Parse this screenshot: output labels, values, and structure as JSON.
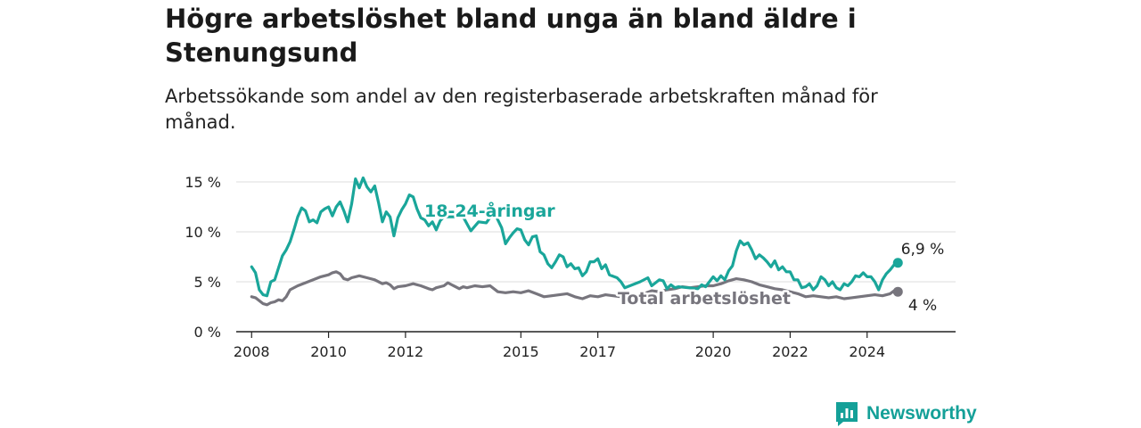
{
  "header": {
    "title": "Högre arbetslöshet bland unga än bland äldre i Stenungsund",
    "subtitle": "Arbetssökande som andel av den registerbaserade arbetskraften månad för månad."
  },
  "brand": {
    "name": "Newsworthy",
    "icon": "newsworthy-bar-chart-icon"
  },
  "colors": {
    "youth": "#1aa69a",
    "total": "#77757d",
    "grid": "#dddddd",
    "axis": "#222222"
  },
  "chart_data": {
    "type": "line",
    "title": "Högre arbetslöshet bland unga än bland äldre i Stenungsund",
    "xlabel": "",
    "ylabel": "",
    "xlim": [
      2007.6,
      2026.3
    ],
    "ylim": [
      0,
      15
    ],
    "grid": true,
    "yticks": [
      {
        "value": 0,
        "label": "0 %"
      },
      {
        "value": 5,
        "label": "5 %"
      },
      {
        "value": 10,
        "label": "10 %"
      },
      {
        "value": 15,
        "label": "15 %"
      }
    ],
    "xticks": [
      {
        "value": 2008,
        "label": "2008"
      },
      {
        "value": 2010,
        "label": "2010"
      },
      {
        "value": 2012,
        "label": "2012"
      },
      {
        "value": 2015,
        "label": "2015"
      },
      {
        "value": 2017,
        "label": "2017"
      },
      {
        "value": 2020,
        "label": "2020"
      },
      {
        "value": 2022,
        "label": "2022"
      },
      {
        "value": 2024,
        "label": "2024"
      }
    ],
    "series": [
      {
        "name": "18-24-åringar",
        "end_label": "6,9 %",
        "points": [
          [
            2008.0,
            6.5
          ],
          [
            2008.1,
            5.9
          ],
          [
            2008.2,
            4.2
          ],
          [
            2008.3,
            3.7
          ],
          [
            2008.4,
            3.6
          ],
          [
            2008.5,
            5.0
          ],
          [
            2008.6,
            5.2
          ],
          [
            2008.7,
            6.4
          ],
          [
            2008.8,
            7.6
          ],
          [
            2008.9,
            8.2
          ],
          [
            2009.0,
            9.0
          ],
          [
            2009.1,
            10.2
          ],
          [
            2009.2,
            11.5
          ],
          [
            2009.3,
            12.4
          ],
          [
            2009.4,
            12.1
          ],
          [
            2009.5,
            11.0
          ],
          [
            2009.6,
            11.2
          ],
          [
            2009.7,
            10.9
          ],
          [
            2009.8,
            12.0
          ],
          [
            2009.9,
            12.3
          ],
          [
            2010.0,
            12.5
          ],
          [
            2010.1,
            11.6
          ],
          [
            2010.2,
            12.5
          ],
          [
            2010.3,
            13.0
          ],
          [
            2010.4,
            12.1
          ],
          [
            2010.5,
            11.0
          ],
          [
            2010.6,
            12.8
          ],
          [
            2010.7,
            15.3
          ],
          [
            2010.8,
            14.4
          ],
          [
            2010.9,
            15.4
          ],
          [
            2011.0,
            14.5
          ],
          [
            2011.1,
            14.0
          ],
          [
            2011.2,
            14.6
          ],
          [
            2011.3,
            12.9
          ],
          [
            2011.4,
            11.0
          ],
          [
            2011.5,
            12.0
          ],
          [
            2011.6,
            11.5
          ],
          [
            2011.7,
            9.6
          ],
          [
            2011.8,
            11.4
          ],
          [
            2011.9,
            12.2
          ],
          [
            2012.0,
            12.8
          ],
          [
            2012.1,
            13.7
          ],
          [
            2012.2,
            13.5
          ],
          [
            2012.3,
            12.3
          ],
          [
            2012.4,
            11.4
          ],
          [
            2012.5,
            11.2
          ],
          [
            2012.6,
            10.6
          ],
          [
            2012.7,
            11.0
          ],
          [
            2012.8,
            10.2
          ],
          [
            2012.9,
            11.1
          ],
          [
            2013.0,
            11.5
          ],
          [
            2013.5,
            11.5
          ],
          [
            2013.7,
            10.1
          ],
          [
            2013.9,
            11.0
          ],
          [
            2014.1,
            10.9
          ],
          [
            2014.3,
            12.0
          ],
          [
            2014.5,
            10.4
          ],
          [
            2014.6,
            8.8
          ],
          [
            2014.7,
            9.4
          ],
          [
            2014.8,
            9.9
          ],
          [
            2014.9,
            10.3
          ],
          [
            2015.0,
            10.2
          ],
          [
            2015.1,
            9.2
          ],
          [
            2015.2,
            8.7
          ],
          [
            2015.3,
            9.5
          ],
          [
            2015.4,
            9.6
          ],
          [
            2015.5,
            8.0
          ],
          [
            2015.6,
            7.7
          ],
          [
            2015.7,
            6.8
          ],
          [
            2015.8,
            6.4
          ],
          [
            2015.9,
            7.0
          ],
          [
            2016.0,
            7.7
          ],
          [
            2016.1,
            7.5
          ],
          [
            2016.2,
            6.5
          ],
          [
            2016.3,
            6.8
          ],
          [
            2016.4,
            6.3
          ],
          [
            2016.5,
            6.4
          ],
          [
            2016.6,
            5.6
          ],
          [
            2016.7,
            6.0
          ],
          [
            2016.8,
            7.0
          ],
          [
            2016.9,
            7.0
          ],
          [
            2017.0,
            7.3
          ],
          [
            2017.1,
            6.3
          ],
          [
            2017.2,
            6.7
          ],
          [
            2017.3,
            5.7
          ],
          [
            2017.5,
            5.4
          ],
          [
            2017.6,
            5.0
          ],
          [
            2017.7,
            4.4
          ],
          [
            2017.9,
            4.7
          ],
          [
            2018.1,
            5.0
          ],
          [
            2018.3,
            5.4
          ],
          [
            2018.4,
            4.6
          ],
          [
            2018.6,
            5.2
          ],
          [
            2018.7,
            5.1
          ],
          [
            2018.8,
            4.3
          ],
          [
            2018.9,
            4.7
          ],
          [
            2019.0,
            4.4
          ],
          [
            2019.1,
            4.5
          ],
          [
            2019.6,
            4.3
          ],
          [
            2019.7,
            4.7
          ],
          [
            2019.8,
            4.5
          ],
          [
            2019.9,
            5.0
          ],
          [
            2020.0,
            5.5
          ],
          [
            2020.1,
            5.1
          ],
          [
            2020.2,
            5.6
          ],
          [
            2020.3,
            5.2
          ],
          [
            2020.4,
            6.1
          ],
          [
            2020.5,
            6.6
          ],
          [
            2020.6,
            8.1
          ],
          [
            2020.7,
            9.1
          ],
          [
            2020.8,
            8.7
          ],
          [
            2020.9,
            8.9
          ],
          [
            2021.0,
            8.2
          ],
          [
            2021.1,
            7.3
          ],
          [
            2021.2,
            7.7
          ],
          [
            2021.3,
            7.4
          ],
          [
            2021.4,
            7.0
          ],
          [
            2021.5,
            6.5
          ],
          [
            2021.6,
            7.1
          ],
          [
            2021.7,
            6.2
          ],
          [
            2021.8,
            6.5
          ],
          [
            2021.9,
            6.0
          ],
          [
            2022.0,
            6.0
          ],
          [
            2022.1,
            5.2
          ],
          [
            2022.2,
            5.2
          ],
          [
            2022.3,
            4.4
          ],
          [
            2022.4,
            4.5
          ],
          [
            2022.5,
            4.8
          ],
          [
            2022.6,
            4.2
          ],
          [
            2022.7,
            4.6
          ],
          [
            2022.8,
            5.5
          ],
          [
            2022.9,
            5.2
          ],
          [
            2023.0,
            4.6
          ],
          [
            2023.1,
            5.0
          ],
          [
            2023.2,
            4.4
          ],
          [
            2023.3,
            4.2
          ],
          [
            2023.4,
            4.8
          ],
          [
            2023.5,
            4.6
          ],
          [
            2023.6,
            5.0
          ],
          [
            2023.7,
            5.6
          ],
          [
            2023.8,
            5.5
          ],
          [
            2023.9,
            5.9
          ],
          [
            2024.0,
            5.5
          ],
          [
            2024.1,
            5.5
          ],
          [
            2024.2,
            5.0
          ],
          [
            2024.3,
            4.2
          ],
          [
            2024.4,
            5.2
          ],
          [
            2024.5,
            5.8
          ],
          [
            2024.6,
            6.2
          ],
          [
            2024.7,
            6.7
          ],
          [
            2024.8,
            6.9
          ]
        ]
      },
      {
        "name": "Total arbetslöshet",
        "end_label": "4 %",
        "points": [
          [
            2008.0,
            3.5
          ],
          [
            2008.1,
            3.4
          ],
          [
            2008.2,
            3.1
          ],
          [
            2008.3,
            2.8
          ],
          [
            2008.4,
            2.7
          ],
          [
            2008.5,
            2.9
          ],
          [
            2008.6,
            3.0
          ],
          [
            2008.7,
            3.2
          ],
          [
            2008.8,
            3.1
          ],
          [
            2008.9,
            3.5
          ],
          [
            2009.0,
            4.2
          ],
          [
            2009.2,
            4.6
          ],
          [
            2009.4,
            4.9
          ],
          [
            2009.6,
            5.2
          ],
          [
            2009.8,
            5.5
          ],
          [
            2010.0,
            5.7
          ],
          [
            2010.1,
            5.9
          ],
          [
            2010.2,
            6.0
          ],
          [
            2010.3,
            5.8
          ],
          [
            2010.4,
            5.3
          ],
          [
            2010.5,
            5.2
          ],
          [
            2010.6,
            5.4
          ],
          [
            2010.8,
            5.6
          ],
          [
            2011.0,
            5.4
          ],
          [
            2011.2,
            5.2
          ],
          [
            2011.4,
            4.8
          ],
          [
            2011.5,
            4.9
          ],
          [
            2011.6,
            4.7
          ],
          [
            2011.7,
            4.3
          ],
          [
            2011.8,
            4.5
          ],
          [
            2012.0,
            4.6
          ],
          [
            2012.2,
            4.8
          ],
          [
            2012.4,
            4.6
          ],
          [
            2012.6,
            4.3
          ],
          [
            2012.7,
            4.2
          ],
          [
            2012.8,
            4.4
          ],
          [
            2013.0,
            4.6
          ],
          [
            2013.1,
            4.9
          ],
          [
            2013.2,
            4.7
          ],
          [
            2013.3,
            4.5
          ],
          [
            2013.4,
            4.3
          ],
          [
            2013.5,
            4.5
          ],
          [
            2013.6,
            4.4
          ],
          [
            2013.8,
            4.6
          ],
          [
            2014.0,
            4.5
          ],
          [
            2014.2,
            4.6
          ],
          [
            2014.4,
            4.0
          ],
          [
            2014.6,
            3.9
          ],
          [
            2014.8,
            4.0
          ],
          [
            2015.0,
            3.9
          ],
          [
            2015.2,
            4.1
          ],
          [
            2015.4,
            3.8
          ],
          [
            2015.6,
            3.5
          ],
          [
            2015.8,
            3.6
          ],
          [
            2016.0,
            3.7
          ],
          [
            2016.2,
            3.8
          ],
          [
            2016.4,
            3.5
          ],
          [
            2016.6,
            3.3
          ],
          [
            2016.8,
            3.6
          ],
          [
            2017.0,
            3.5
          ],
          [
            2017.2,
            3.7
          ],
          [
            2017.4,
            3.6
          ],
          [
            2017.6,
            3.5
          ],
          [
            2017.8,
            3.7
          ],
          [
            2018.0,
            3.6
          ],
          [
            2018.2,
            3.8
          ],
          [
            2018.4,
            4.1
          ],
          [
            2018.6,
            4.0
          ],
          [
            2018.8,
            4.2
          ],
          [
            2019.0,
            4.3
          ],
          [
            2019.2,
            4.5
          ],
          [
            2019.4,
            4.4
          ],
          [
            2019.6,
            4.5
          ],
          [
            2019.8,
            4.6
          ],
          [
            2020.0,
            4.6
          ],
          [
            2020.2,
            4.8
          ],
          [
            2020.4,
            5.1
          ],
          [
            2020.6,
            5.3
          ],
          [
            2020.8,
            5.2
          ],
          [
            2021.0,
            5.0
          ],
          [
            2021.2,
            4.7
          ],
          [
            2021.4,
            4.5
          ],
          [
            2021.6,
            4.3
          ],
          [
            2021.8,
            4.2
          ],
          [
            2022.0,
            4.0
          ],
          [
            2022.2,
            3.8
          ],
          [
            2022.4,
            3.5
          ],
          [
            2022.6,
            3.6
          ],
          [
            2022.8,
            3.5
          ],
          [
            2023.0,
            3.4
          ],
          [
            2023.2,
            3.5
          ],
          [
            2023.4,
            3.3
          ],
          [
            2023.6,
            3.4
          ],
          [
            2023.8,
            3.5
          ],
          [
            2024.0,
            3.6
          ],
          [
            2024.2,
            3.7
          ],
          [
            2024.4,
            3.6
          ],
          [
            2024.6,
            3.8
          ],
          [
            2024.7,
            4.1
          ],
          [
            2024.8,
            4.0
          ]
        ]
      }
    ]
  }
}
